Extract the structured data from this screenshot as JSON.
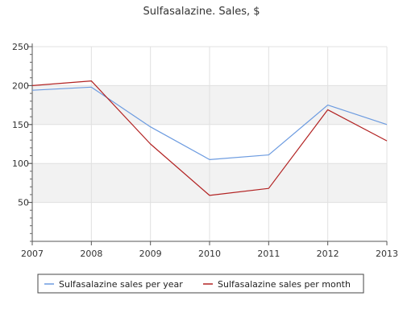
{
  "chart_data": {
    "type": "line",
    "title": "Sulfasalazine. Sales, $",
    "xlabel": "",
    "ylabel": "",
    "x": [
      2007,
      2008,
      2009,
      2010,
      2011,
      2012,
      2013
    ],
    "ylim": [
      0,
      250
    ],
    "xlim": [
      2007,
      2013
    ],
    "yticks": [
      50,
      100,
      150,
      200,
      250
    ],
    "grid": "vertical lines with alternating horizontal bands",
    "legend_position": "bottom",
    "series": [
      {
        "name": "Sulfasalazine sales per year",
        "color": "#6c9be0",
        "values": [
          194,
          198,
          147,
          105,
          111,
          175,
          150
        ]
      },
      {
        "name": "Sulfasalazine sales per month",
        "color": "#b22222",
        "values": [
          200,
          206,
          125,
          59,
          68,
          169,
          129
        ]
      }
    ]
  }
}
